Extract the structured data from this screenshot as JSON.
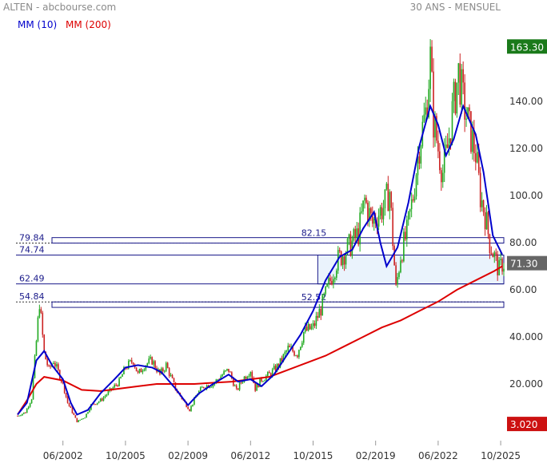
{
  "header": {
    "title": "ALTEN - abcbourse.com",
    "period": "30 ANS - MENSUEL",
    "legend": [
      {
        "label": "MM (10)",
        "color": "#0000cc"
      },
      {
        "label": "MM (200)",
        "color": "#dd0000"
      }
    ]
  },
  "chart_data": {
    "type": "candlestick",
    "ylim": [
      0,
      170
    ],
    "y_ticks": [
      "20.000",
      "40.000",
      "60.00",
      "80.00",
      "100.00",
      "120.00",
      "140.00"
    ],
    "x_ticks": [
      "06/2002",
      "10/2005",
      "02/2009",
      "06/2012",
      "10/2015",
      "02/2019",
      "06/2022",
      "10/2025"
    ],
    "max_label": "163.30",
    "min_label": "3.020",
    "last_label": "71.30",
    "max_value": 163.3,
    "min_value": 3.02,
    "last_value": 71.3,
    "levels": [
      {
        "label": "79.84",
        "value": 79.84
      },
      {
        "label": "74.74",
        "value": 74.74
      },
      {
        "label": "62.49",
        "value": 62.49
      },
      {
        "label": "54.84",
        "value": 54.84
      }
    ],
    "zones": [
      {
        "label": "82.15",
        "top": 82.15,
        "bottom": 79.84,
        "start": "11/2001"
      },
      {
        "label": "52.52",
        "top": 54.84,
        "bottom": 52.52,
        "start": "11/2001"
      }
    ],
    "highlight_box": {
      "top": 74.74,
      "bottom": 62.49,
      "start": "01/2016"
    },
    "colors": {
      "up": "#22aa22",
      "down": "#cc2222",
      "mm10": "#0000cc",
      "mm200": "#dd0000",
      "max_badge": "#1a7a1a",
      "min_badge": "#cc1111",
      "last_badge": "#666666",
      "level_line": "#1a1a8a",
      "highlight_fill": "#eaf3fc"
    },
    "ma10_points": [
      [
        "2000-01",
        7
      ],
      [
        "2000-07",
        12
      ],
      [
        "2001-01",
        30
      ],
      [
        "2001-06",
        34
      ],
      [
        "2001-11",
        28
      ],
      [
        "2002-06",
        22
      ],
      [
        "2002-11",
        12
      ],
      [
        "2003-03",
        7
      ],
      [
        "2003-10",
        9
      ],
      [
        "2004-06",
        16
      ],
      [
        "2005-03",
        22
      ],
      [
        "2005-10",
        27
      ],
      [
        "2006-06",
        28
      ],
      [
        "2007-03",
        27
      ],
      [
        "2007-09",
        25
      ],
      [
        "2008-06",
        18
      ],
      [
        "2009-02",
        11
      ],
      [
        "2009-09",
        16
      ],
      [
        "2010-06",
        20
      ],
      [
        "2011-04",
        24
      ],
      [
        "2011-10",
        21
      ],
      [
        "2012-06",
        22
      ],
      [
        "2013-01",
        19
      ],
      [
        "2013-09",
        24
      ],
      [
        "2014-06",
        33
      ],
      [
        "2015-02",
        41
      ],
      [
        "2015-10",
        51
      ],
      [
        "2016-06",
        64
      ],
      [
        "2017-03",
        74
      ],
      [
        "2017-11",
        77
      ],
      [
        "2018-06",
        86
      ],
      [
        "2019-01",
        93
      ],
      [
        "2019-05",
        80
      ],
      [
        "2019-09",
        70
      ],
      [
        "2020-04",
        78
      ],
      [
        "2020-11",
        97
      ],
      [
        "2021-06",
        121
      ],
      [
        "2022-01",
        138
      ],
      [
        "2022-06",
        130
      ],
      [
        "2022-11",
        117
      ],
      [
        "2023-04",
        124
      ],
      [
        "2023-10",
        138
      ],
      [
        "2024-06",
        126
      ],
      [
        "2024-11",
        110
      ],
      [
        "2025-05",
        83
      ],
      [
        "2025-11",
        75
      ]
    ],
    "ma200_points": [
      [
        "2000-01",
        7
      ],
      [
        "2000-07",
        13
      ],
      [
        "2001-01",
        20
      ],
      [
        "2001-06",
        23
      ],
      [
        "2002-06",
        21.5
      ],
      [
        "2003-06",
        17.5
      ],
      [
        "2004-06",
        17
      ],
      [
        "2005-06",
        18
      ],
      [
        "2006-06",
        19
      ],
      [
        "2007-06",
        20
      ],
      [
        "2008-06",
        20
      ],
      [
        "2009-06",
        20
      ],
      [
        "2010-06",
        20.5
      ],
      [
        "2011-06",
        21
      ],
      [
        "2012-06",
        22
      ],
      [
        "2013-06",
        23
      ],
      [
        "2014-06",
        26
      ],
      [
        "2015-06",
        29
      ],
      [
        "2016-06",
        32
      ],
      [
        "2017-06",
        36
      ],
      [
        "2018-06",
        40
      ],
      [
        "2019-06",
        44
      ],
      [
        "2020-06",
        47
      ],
      [
        "2021-06",
        51
      ],
      [
        "2022-06",
        55
      ],
      [
        "2023-06",
        60
      ],
      [
        "2024-06",
        64
      ],
      [
        "2025-06",
        68
      ],
      [
        "2025-11",
        70
      ]
    ],
    "price_points": [
      [
        "2000-01",
        6.5
      ],
      [
        "2000-06",
        8
      ],
      [
        "2000-10",
        14
      ],
      [
        "2001-01",
        38
      ],
      [
        "2001-03",
        55
      ],
      [
        "2001-06",
        33
      ],
      [
        "2001-09",
        26
      ],
      [
        "2001-12",
        30
      ],
      [
        "2002-03",
        25
      ],
      [
        "2002-06",
        20
      ],
      [
        "2002-09",
        12
      ],
      [
        "2002-12",
        8
      ],
      [
        "2003-03",
        4
      ],
      [
        "2003-08",
        6
      ],
      [
        "2003-12",
        11
      ],
      [
        "2004-06",
        13
      ],
      [
        "2004-12",
        17
      ],
      [
        "2005-06",
        21
      ],
      [
        "2005-10",
        27
      ],
      [
        "2006-03",
        30
      ],
      [
        "2006-06",
        24
      ],
      [
        "2006-10",
        28
      ],
      [
        "2007-03",
        30
      ],
      [
        "2007-08",
        24
      ],
      [
        "2007-12",
        28
      ],
      [
        "2008-06",
        18
      ],
      [
        "2008-12",
        12
      ],
      [
        "2009-03",
        9
      ],
      [
        "2009-08",
        16
      ],
      [
        "2009-12",
        19
      ],
      [
        "2010-06",
        20
      ],
      [
        "2010-12",
        24
      ],
      [
        "2011-04",
        26
      ],
      [
        "2011-09",
        17
      ],
      [
        "2012-01",
        22
      ],
      [
        "2012-06",
        26
      ],
      [
        "2012-09",
        18
      ],
      [
        "2013-01",
        22
      ],
      [
        "2013-06",
        24
      ],
      [
        "2013-12",
        28
      ],
      [
        "2014-06",
        35
      ],
      [
        "2014-12",
        33
      ],
      [
        "2015-04",
        42
      ],
      [
        "2015-10",
        44
      ],
      [
        "2016-03",
        52
      ],
      [
        "2016-08",
        62
      ],
      [
        "2017-01",
        72
      ],
      [
        "2017-06",
        76
      ],
      [
        "2017-11",
        80
      ],
      [
        "2018-03",
        84
      ],
      [
        "2018-07",
        98
      ],
      [
        "2018-12",
        88
      ],
      [
        "2019-03",
        92
      ],
      [
        "2019-07",
        95
      ],
      [
        "2019-11",
        102
      ],
      [
        "2020-03",
        60
      ],
      [
        "2020-06",
        75
      ],
      [
        "2020-10",
        84
      ],
      [
        "2021-02",
        100
      ],
      [
        "2021-06",
        122
      ],
      [
        "2021-10",
        135
      ],
      [
        "2022-01",
        158
      ],
      [
        "2022-03",
        132
      ],
      [
        "2022-06",
        120
      ],
      [
        "2022-09",
        110
      ],
      [
        "2022-12",
        120
      ],
      [
        "2023-03",
        135
      ],
      [
        "2023-07",
        152
      ],
      [
        "2023-10",
        140
      ],
      [
        "2024-02",
        128
      ],
      [
        "2024-06",
        118
      ],
      [
        "2024-09",
        100
      ],
      [
        "2024-12",
        92
      ],
      [
        "2025-03",
        80
      ],
      [
        "2025-06",
        74
      ],
      [
        "2025-09",
        68
      ],
      [
        "2025-11",
        71.3
      ]
    ]
  }
}
